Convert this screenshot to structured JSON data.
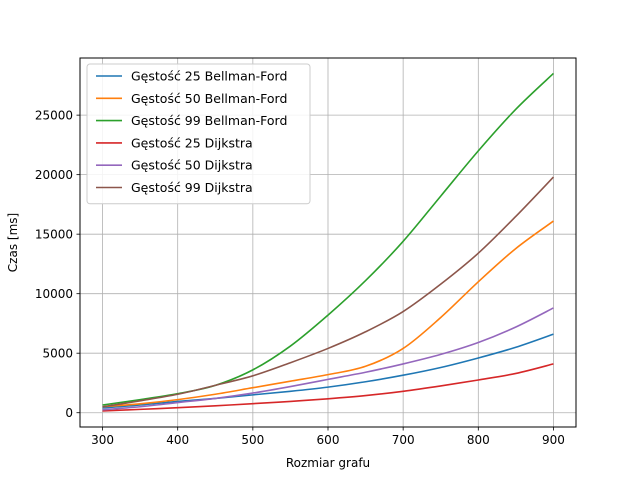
{
  "chart_data": {
    "type": "line",
    "title": "",
    "xlabel": "Rozmiar grafu",
    "ylabel": "Czas [ms]",
    "xlim": [
      270,
      930
    ],
    "ylim": [
      -1200,
      29800
    ],
    "xticks": [
      300,
      400,
      500,
      600,
      700,
      800,
      900
    ],
    "yticks": [
      0,
      5000,
      10000,
      15000,
      20000,
      25000
    ],
    "grid": true,
    "legend_position": "top-left",
    "x": [
      300,
      350,
      400,
      450,
      500,
      550,
      600,
      650,
      700,
      750,
      800,
      850,
      900
    ],
    "series": [
      {
        "name": "Gęstość 25 Bellman-Ford",
        "color": "#1f77b4",
        "values": [
          400,
          650,
          950,
          1200,
          1500,
          1800,
          2150,
          2600,
          3150,
          3800,
          4600,
          5500,
          6600
        ]
      },
      {
        "name": "Gęstość 50 Bellman-Ford",
        "color": "#ff7f0e",
        "values": [
          500,
          750,
          1100,
          1550,
          2100,
          2650,
          3200,
          3900,
          5400,
          8000,
          11000,
          13800,
          16100
        ]
      },
      {
        "name": "Gęstość 99 Bellman-Ford",
        "color": "#2ca02c",
        "values": [
          650,
          1100,
          1600,
          2300,
          3600,
          5600,
          8200,
          11100,
          14400,
          18200,
          22000,
          25500,
          28500
        ]
      },
      {
        "name": "Gęstość 25 Dijkstra",
        "color": "#d62728",
        "values": [
          150,
          280,
          420,
          580,
          760,
          950,
          1170,
          1440,
          1800,
          2250,
          2750,
          3300,
          4100
        ]
      },
      {
        "name": "Gęstość 50 Dijkstra",
        "color": "#9467bd",
        "values": [
          250,
          500,
          850,
          1200,
          1650,
          2200,
          2800,
          3400,
          4100,
          4900,
          5900,
          7200,
          8800
        ]
      },
      {
        "name": "Gęstość 99 Dijkstra",
        "color": "#8c564b",
        "values": [
          500,
          1000,
          1550,
          2300,
          3100,
          4200,
          5400,
          6800,
          8500,
          10800,
          13400,
          16500,
          19800
        ]
      }
    ]
  }
}
